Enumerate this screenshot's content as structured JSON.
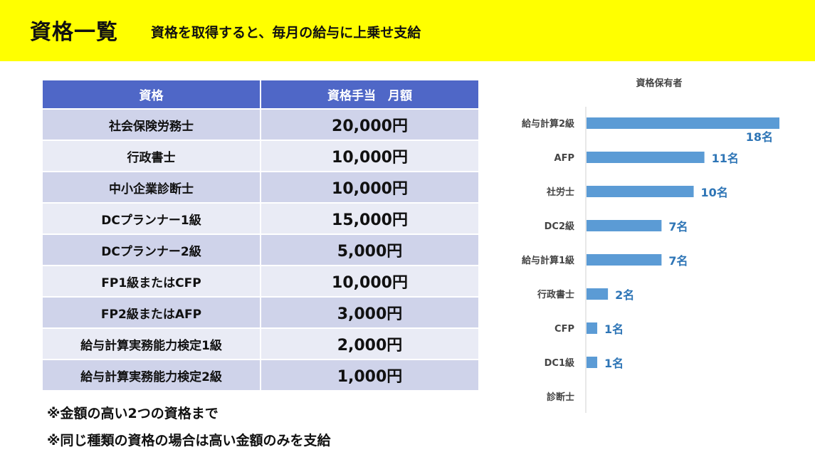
{
  "header": {
    "title": "資格一覧",
    "subtitle": "資格を取得すると、毎月の給与に上乗せ支給"
  },
  "table": {
    "headers": [
      "資格",
      "資格手当　月額"
    ],
    "rows": [
      {
        "name": "社会保険労務士",
        "amount": "20,000円"
      },
      {
        "name": "行政書士",
        "amount": "10,000円"
      },
      {
        "name": "中小企業診断士",
        "amount": "10,000円"
      },
      {
        "name": "DCプランナー1級",
        "amount": "15,000円"
      },
      {
        "name": "DCプランナー2級",
        "amount": "5,000円"
      },
      {
        "name": "FP1級またはCFP",
        "amount": "10,000円"
      },
      {
        "name": "FP2級またはAFP",
        "amount": "3,000円"
      },
      {
        "name": "給与計算実務能力検定1級",
        "amount": "2,000円"
      },
      {
        "name": "給与計算実務能力検定2級",
        "amount": "1,000円"
      }
    ]
  },
  "notes": [
    "※金額の高い2つの資格まで",
    "※同じ種類の資格の場合は高い金額のみを支給"
  ],
  "colors": {
    "header_bg": "#ffff00",
    "table_header": "#4f67c7",
    "row_dark": "#cfd3ea",
    "row_light": "#e9ebf5",
    "bar": "#5b9bd5",
    "bar_label": "#2e75b6"
  },
  "chart_data": {
    "type": "bar",
    "orientation": "horizontal",
    "title": "資格保有者",
    "categories": [
      "給与計算2級",
      "AFP",
      "社労士",
      "DC2級",
      "給与計算1級",
      "行政書士",
      "CFP",
      "DC1級",
      "診断士"
    ],
    "values": [
      18,
      11,
      10,
      7,
      7,
      2,
      1,
      1,
      0
    ],
    "data_labels": [
      "18名",
      "11名",
      "10名",
      "7名",
      "7名",
      "2名",
      "1名",
      "1名",
      ""
    ],
    "xlim": [
      0,
      18
    ],
    "grid": false,
    "legend": "none"
  }
}
